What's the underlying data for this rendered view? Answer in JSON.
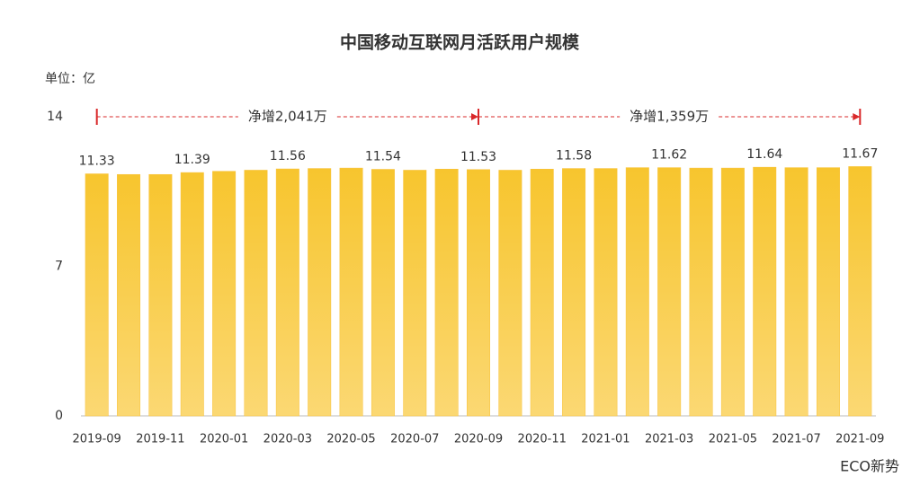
{
  "chart_data": {
    "type": "bar",
    "title": "中国移动互联网月活跃用户规模",
    "y_label": "单位：亿",
    "categories": [
      "2019-09",
      null,
      "2019-11",
      null,
      "2020-01",
      null,
      "2020-03",
      null,
      "2020-05",
      null,
      "2020-07",
      null,
      "2020-09",
      null,
      "2020-11",
      null,
      "2021-01",
      null,
      "2021-03",
      null,
      "2021-05",
      null,
      "2021-07",
      null,
      "2021-09"
    ],
    "values": [
      11.33,
      11.3,
      11.3,
      11.39,
      11.45,
      11.5,
      11.56,
      11.58,
      11.6,
      11.54,
      11.5,
      11.55,
      11.53,
      11.5,
      11.55,
      11.58,
      11.58,
      11.62,
      11.62,
      11.6,
      11.6,
      11.64,
      11.62,
      11.62,
      11.67
    ],
    "color": "#f8c13a",
    "ylim": [
      0,
      14
    ],
    "yticks": [
      0,
      7,
      14
    ],
    "grid": false,
    "annotations": [
      "净增2,041万",
      "净增1,359万"
    ],
    "annotation_color": "#d9282a",
    "watermark": "ECO新势"
  }
}
